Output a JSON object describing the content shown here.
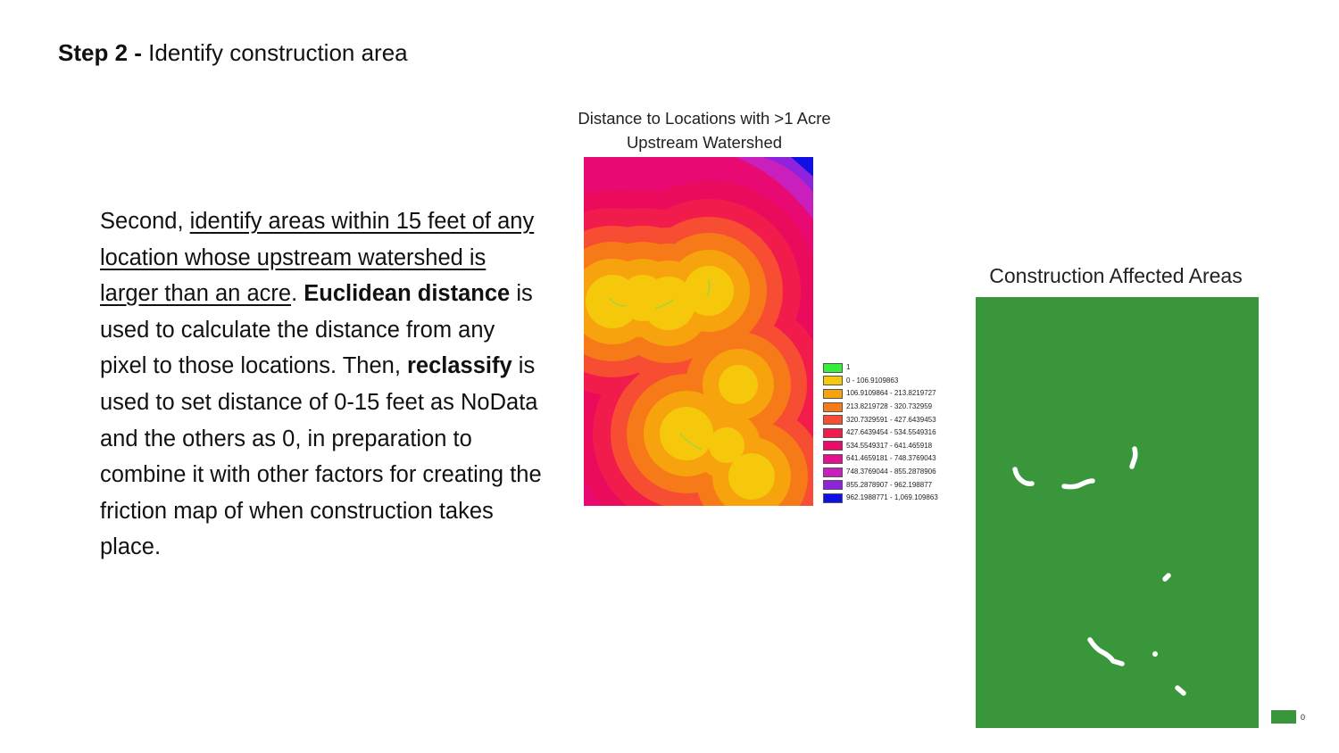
{
  "title": {
    "bold": "Step 2 -",
    "rest": " Identify construction area"
  },
  "body": {
    "p1": "Second, ",
    "u1": "identify areas within 15 feet of any location whose upstream watershed is larger than an acre",
    "p2": ". ",
    "b1": "Euclidean distance",
    "p3": " is used to calculate the distance from any pixel to those locations. Then, ",
    "b2": "reclassify",
    "p4": " is used to set distance of 0-15 feet as NoData and the others as 0, in preparation to combine it with other factors for creating the friction map of when construction takes place."
  },
  "distance_map": {
    "title": "Distance to Locations with >1 Acre Upstream Watershed",
    "legend": [
      {
        "label": "1",
        "color": "#35f03a"
      },
      {
        "label": "0 - 106.9109863",
        "color": "#f5c80c"
      },
      {
        "label": "106.9109864 - 213.8219727",
        "color": "#f7a30e"
      },
      {
        "label": "213.8219728 - 320.732959",
        "color": "#f77a18"
      },
      {
        "label": "320.7329591 - 427.6439453",
        "color": "#f64d33"
      },
      {
        "label": "427.6439454 - 534.5549316",
        "color": "#f21c4c"
      },
      {
        "label": "534.5549317 - 641.465918",
        "color": "#ec0a68"
      },
      {
        "label": "641.4659181 - 748.3769043",
        "color": "#e3108f"
      },
      {
        "label": "748.3769044 - 855.2878906",
        "color": "#c81fbd"
      },
      {
        "label": "855.2878907 - 962.198877",
        "color": "#8f23dd"
      },
      {
        "label": "962.1988771 - 1,069.109863",
        "color": "#1010e6"
      }
    ]
  },
  "construction_map": {
    "title": "Construction Affected Areas",
    "fill_color": "#3a963a",
    "legend": [
      {
        "label": "0",
        "color": "#3a963a"
      }
    ]
  }
}
